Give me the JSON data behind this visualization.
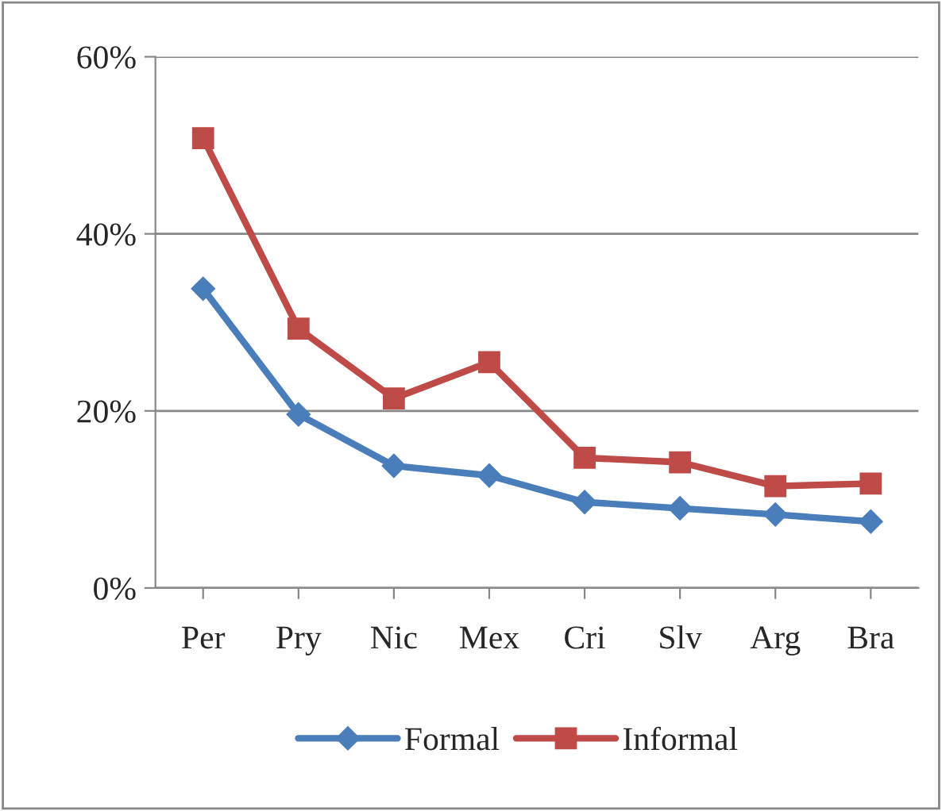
{
  "chart_data": {
    "type": "line",
    "categories": [
      "Per",
      "Pry",
      "Nic",
      "Mex",
      "Cri",
      "Slv",
      "Arg",
      "Bra"
    ],
    "series": [
      {
        "name": "Formal",
        "color": "#4a7ebb",
        "marker": "diamond",
        "values": [
          33.8,
          19.6,
          13.8,
          12.7,
          9.7,
          9.0,
          8.3,
          7.5
        ]
      },
      {
        "name": "Informal",
        "color": "#be4b48",
        "marker": "square",
        "values": [
          50.8,
          29.3,
          21.4,
          25.5,
          14.7,
          14.2,
          11.5,
          11.8
        ]
      }
    ],
    "ylim": [
      0,
      60
    ],
    "yticks": [
      {
        "value": 0,
        "label": "0%"
      },
      {
        "value": 20,
        "label": "20%"
      },
      {
        "value": 40,
        "label": "40%"
      },
      {
        "value": 60,
        "label": "60%"
      }
    ],
    "grid": "y",
    "legend": "bottom",
    "line_style": "solid"
  }
}
